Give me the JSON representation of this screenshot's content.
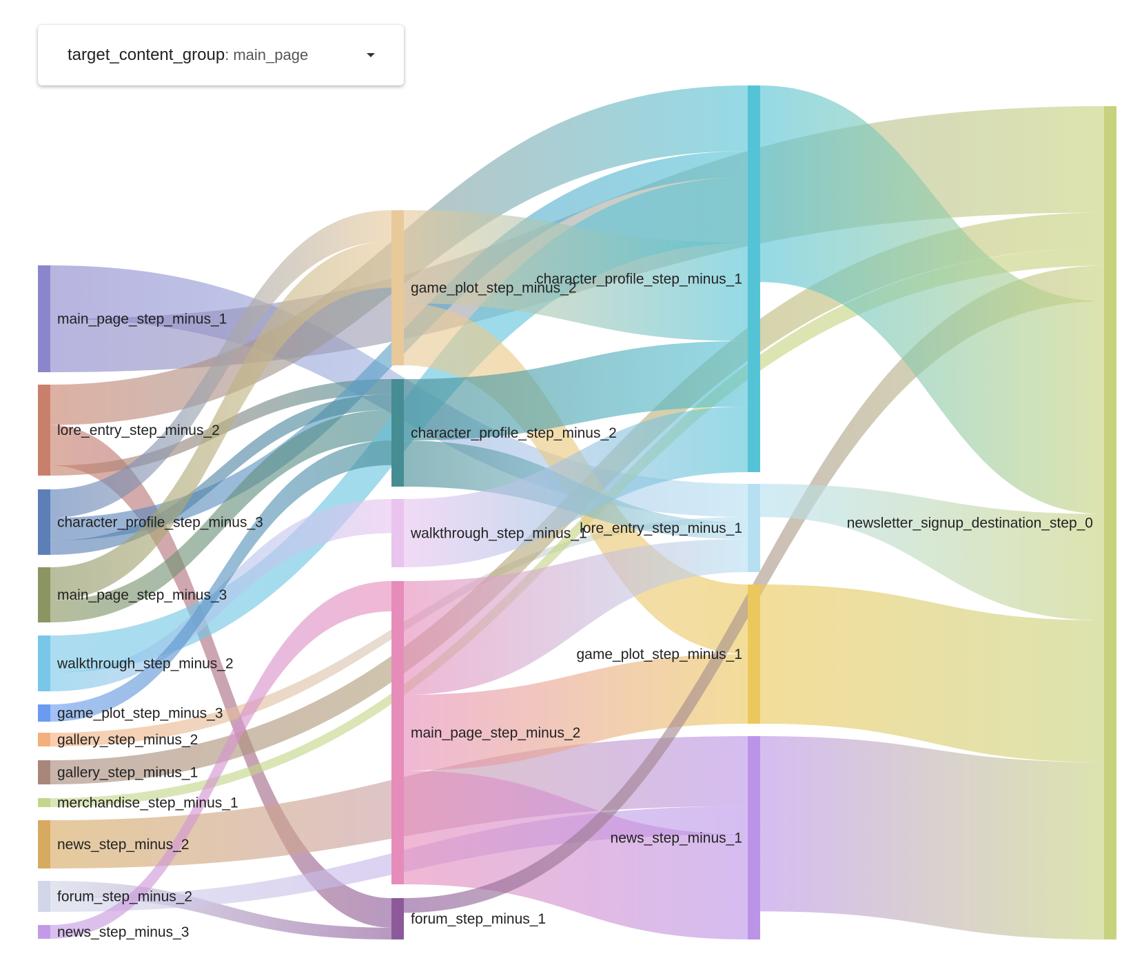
{
  "filter": {
    "label": "target_content_group",
    "colon": ":",
    "value": "main_page",
    "icon": "chevron-down-icon"
  },
  "sankey": {
    "nodes": [
      {
        "id": "mp3",
        "label": "main_page_step_minus_1",
        "color": "#8b86cc"
      },
      {
        "id": "le2",
        "label": "lore_entry_step_minus_2",
        "color": "#c9806b"
      },
      {
        "id": "cp3",
        "label": "character_profile_step_minus_3",
        "color": "#5c7fb8"
      },
      {
        "id": "mpm3",
        "label": "main_page_step_minus_3",
        "color": "#8a9561"
      },
      {
        "id": "wt2",
        "label": "walkthrough_step_minus_2",
        "color": "#79c7e8"
      },
      {
        "id": "gp3",
        "label": "game_plot_step_minus_3",
        "color": "#6a9bf0"
      },
      {
        "id": "ga2",
        "label": "gallery_step_minus_2",
        "color": "#f4b07c"
      },
      {
        "id": "ga1",
        "label": "gallery_step_minus_1",
        "color": "#a8877a"
      },
      {
        "id": "me1",
        "label": "merchandise_step_minus_1",
        "color": "#c3d68c"
      },
      {
        "id": "ne2",
        "label": "news_step_minus_2",
        "color": "#d6aa60"
      },
      {
        "id": "fo2",
        "label": "forum_step_minus_2",
        "color": "#d1d6e8"
      },
      {
        "id": "ne3",
        "label": "news_step_minus_3",
        "color": "#c39ae6"
      },
      {
        "id": "gpm2",
        "label": "game_plot_step_minus_2",
        "color": "#e8c99a"
      },
      {
        "id": "cpm2",
        "label": "character_profile_step_minus_2",
        "color": "#468c93"
      },
      {
        "id": "wtm1",
        "label": "walkthrough_step_minus_1",
        "color": "#e8c4ef"
      },
      {
        "id": "mpm2",
        "label": "main_page_step_minus_2",
        "color": "#e68cba"
      },
      {
        "id": "fom1",
        "label": "forum_step_minus_1",
        "color": "#8c5a99"
      },
      {
        "id": "cpm1",
        "label": "character_profile_step_minus_1",
        "color": "#55c3d6"
      },
      {
        "id": "lem1",
        "label": "lore_entry_step_minus_1",
        "color": "#b6e0f2"
      },
      {
        "id": "gpm1",
        "label": "game_plot_step_minus_1",
        "color": "#ecc85c"
      },
      {
        "id": "nem1",
        "label": "news_step_minus_1",
        "color": "#bb94e8"
      },
      {
        "id": "dest",
        "label": "newsletter_signup_destination_step_0",
        "color": "#c8d27e"
      }
    ],
    "links": [
      {
        "source": "mp3",
        "target": "lem1",
        "value": 30
      },
      {
        "source": "mp3",
        "target": "dest",
        "value": 30
      },
      {
        "source": "le2",
        "target": "cpm1",
        "value": 20
      },
      {
        "source": "le2",
        "target": "fom1",
        "value": 20
      },
      {
        "source": "le2",
        "target": "cpm2",
        "value": 5
      },
      {
        "source": "cp3",
        "target": "gpm2",
        "value": 10
      },
      {
        "source": "cp3",
        "target": "cpm1",
        "value": 8
      },
      {
        "source": "cp3",
        "target": "cpm2",
        "value": 5
      },
      {
        "source": "mpm3",
        "target": "gpm2",
        "value": 15
      },
      {
        "source": "mpm3",
        "target": "cpm2",
        "value": 10
      },
      {
        "source": "wt2",
        "target": "cpm1",
        "value": 20
      },
      {
        "source": "wt2",
        "target": "wtm1",
        "value": 10
      },
      {
        "source": "gp3",
        "target": "cpm2",
        "value": 8
      },
      {
        "source": "ga2",
        "target": "lem1",
        "value": 5
      },
      {
        "source": "ga1",
        "target": "dest",
        "value": 10
      },
      {
        "source": "me1",
        "target": "dest",
        "value": 5
      },
      {
        "source": "ne2",
        "target": "nem1",
        "value": 20
      },
      {
        "source": "fo2",
        "target": "fom1",
        "value": 8
      },
      {
        "source": "fo2",
        "target": "nem1",
        "value": 8
      },
      {
        "source": "ne3",
        "target": "mpm2",
        "value": 8
      },
      {
        "source": "gpm2",
        "target": "cpm1",
        "value": 30
      },
      {
        "source": "gpm2",
        "target": "gpm1",
        "value": 20
      },
      {
        "source": "cpm2",
        "target": "cpm1",
        "value": 20
      },
      {
        "source": "cpm2",
        "target": "lem1",
        "value": 15
      },
      {
        "source": "wtm1",
        "target": "cpm1",
        "value": 20
      },
      {
        "source": "mpm2",
        "target": "lem1",
        "value": 30
      },
      {
        "source": "mpm2",
        "target": "gpm1",
        "value": 20
      },
      {
        "source": "mpm2",
        "target": "nem1",
        "value": 30
      },
      {
        "source": "fom1",
        "target": "dest",
        "value": 10
      },
      {
        "source": "cpm1",
        "target": "dest",
        "value": 60
      },
      {
        "source": "lem1",
        "target": "dest",
        "value": 30
      },
      {
        "source": "gpm1",
        "target": "dest",
        "value": 40
      },
      {
        "source": "nem1",
        "target": "dest",
        "value": 50
      }
    ]
  }
}
